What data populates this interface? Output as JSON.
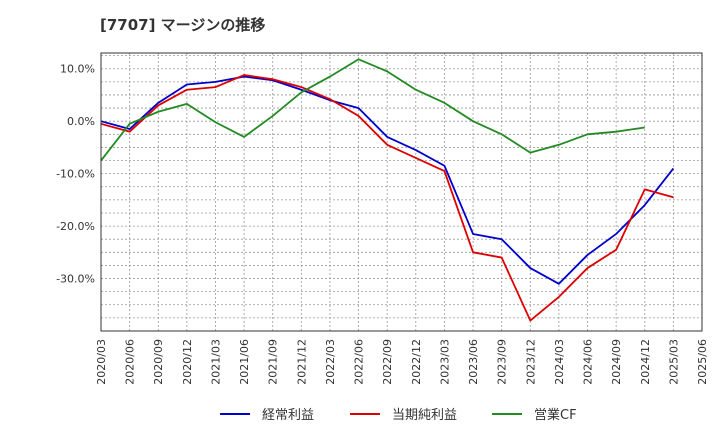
{
  "title": "[7707]  マージンの推移",
  "chart_data": {
    "type": "line",
    "title": "[7707]  マージンの推移",
    "xlabel": "",
    "ylabel": "",
    "ylim": [
      -40,
      13
    ],
    "yticks": [
      10,
      0,
      -10,
      -20,
      -30
    ],
    "ytick_labels": [
      "10.0%",
      "0.0%",
      "-10.0%",
      "-20.0%",
      "-30.0%"
    ],
    "x": [
      "2020/03",
      "2020/06",
      "2020/09",
      "2020/12",
      "2021/03",
      "2021/06",
      "2021/09",
      "2021/12",
      "2022/03",
      "2022/06",
      "2022/09",
      "2022/12",
      "2023/03",
      "2023/06",
      "2023/09",
      "2023/12",
      "2024/03",
      "2024/06",
      "2024/09",
      "2024/12",
      "2025/03",
      "2025/06"
    ],
    "grid": true,
    "legend_position": "bottom",
    "series": [
      {
        "name": "経常利益",
        "color": "#0000cc",
        "values": [
          0.0,
          -1.5,
          3.5,
          7.0,
          7.5,
          8.5,
          7.8,
          6.0,
          4.0,
          2.5,
          -3.0,
          -5.5,
          -8.5,
          -21.5,
          -22.5,
          -28.0,
          -31.0,
          -25.5,
          -21.5,
          -16.0,
          -9.0,
          null
        ]
      },
      {
        "name": "当期純利益",
        "color": "#dd0000",
        "values": [
          -0.5,
          -2.0,
          3.0,
          6.0,
          6.5,
          8.8,
          8.0,
          6.5,
          4.2,
          1.0,
          -4.5,
          -7.0,
          -9.5,
          -25.0,
          -26.0,
          -38.0,
          -33.5,
          -28.0,
          -24.5,
          -13.0,
          -14.5,
          null
        ]
      },
      {
        "name": "営業CF",
        "color": "#228b22",
        "values": [
          -7.5,
          -0.5,
          1.8,
          3.3,
          -0.2,
          -3.0,
          1.0,
          5.5,
          8.5,
          11.8,
          9.5,
          6.0,
          3.5,
          0.0,
          -2.5,
          -6.0,
          -4.5,
          -2.5,
          -2.0,
          -1.2,
          null,
          null
        ]
      }
    ]
  }
}
